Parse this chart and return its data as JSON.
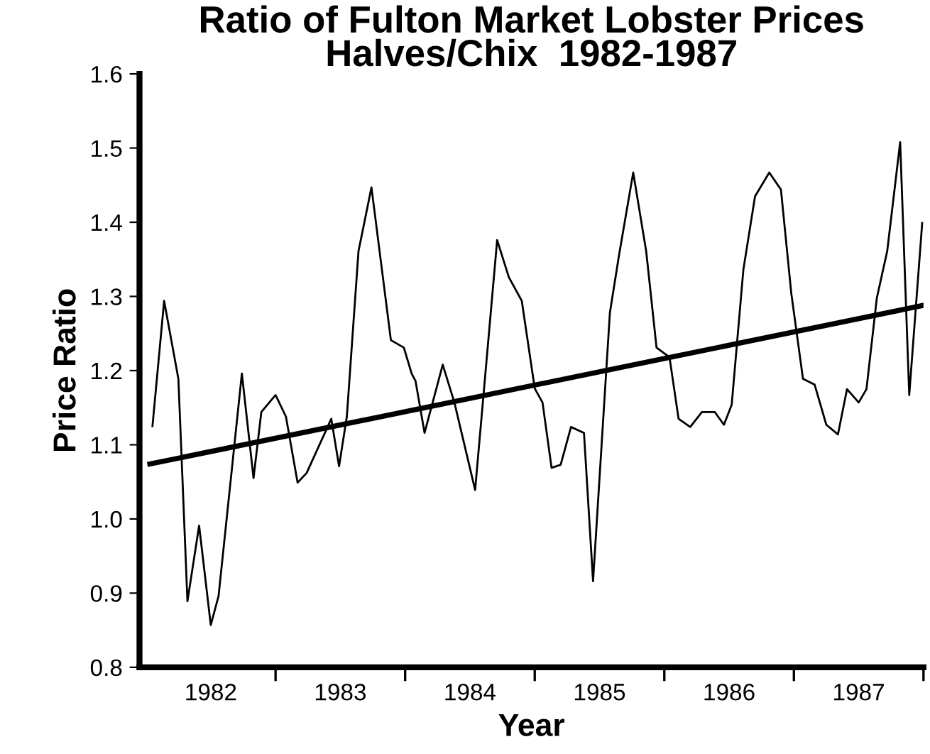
{
  "chart_data": {
    "type": "line",
    "title": "Ratio of Fulton Market Lobster Prices\nHalves/Chix  1982-1987",
    "xlabel": "Year",
    "ylabel": "Price Ratio",
    "xlim": [
      1981.95,
      1988.0
    ],
    "xticks": [
      {
        "value": 1982.5,
        "label": "1982"
      },
      {
        "value": 1983,
        "label": null
      },
      {
        "value": 1983.5,
        "label": "1983"
      },
      {
        "value": 1984,
        "label": null
      },
      {
        "value": 1984.5,
        "label": "1984"
      },
      {
        "value": 1985,
        "label": null
      },
      {
        "value": 1985.5,
        "label": "1985"
      },
      {
        "value": 1986,
        "label": null
      },
      {
        "value": 1986.5,
        "label": "1986"
      },
      {
        "value": 1987,
        "label": null
      },
      {
        "value": 1987.5,
        "label": "1987"
      },
      {
        "value": 1988,
        "label": null
      }
    ],
    "ylim": [
      0.8,
      1.6
    ],
    "yticks": [
      0.8,
      0.9,
      {
        "value": 1.0,
        "label": "1.0"
      },
      1.1,
      1.2,
      1.3,
      1.4,
      1.5,
      1.6
    ],
    "grid": false,
    "legend": false,
    "marker": "none",
    "series": [
      {
        "color": "#000000",
        "line_style": "solid",
        "x": [
          1982.05,
          1982.14,
          1982.25,
          1982.32,
          1982.41,
          1982.5,
          1982.56,
          1982.74,
          1982.83,
          1982.89,
          1983.0,
          1983.08,
          1983.17,
          1983.24,
          1983.43,
          1983.49,
          1983.55,
          1983.64,
          1983.74,
          1983.89,
          1983.99,
          1984.05,
          1984.08,
          1984.15,
          1984.29,
          1984.38,
          1984.54,
          1984.71,
          1984.8,
          1984.9,
          1985.0,
          1985.06,
          1985.13,
          1985.2,
          1985.28,
          1985.38,
          1985.45,
          1985.58,
          1985.65,
          1985.76,
          1985.86,
          1985.94,
          1986.04,
          1986.11,
          1986.2,
          1986.29,
          1986.39,
          1986.46,
          1986.52,
          1986.61,
          1986.7,
          1986.81,
          1986.9,
          1986.98,
          1987.07,
          1987.16,
          1987.25,
          1987.34,
          1987.41,
          1987.5,
          1987.56,
          1987.64,
          1987.72,
          1987.82,
          1987.89,
          1987.99
        ],
        "values": [
          1.125,
          1.294,
          1.189,
          0.889,
          0.991,
          0.857,
          0.896,
          1.196,
          1.055,
          1.144,
          1.167,
          1.138,
          1.049,
          1.062,
          1.135,
          1.071,
          1.138,
          1.361,
          1.447,
          1.241,
          1.231,
          1.196,
          1.186,
          1.116,
          1.208,
          1.157,
          1.039,
          1.376,
          1.326,
          1.294,
          1.176,
          1.157,
          1.069,
          1.073,
          1.124,
          1.116,
          0.916,
          1.278,
          1.355,
          1.467,
          1.361,
          1.231,
          1.218,
          1.135,
          1.124,
          1.144,
          1.144,
          1.127,
          1.154,
          1.336,
          1.435,
          1.467,
          1.444,
          1.304,
          1.189,
          1.181,
          1.127,
          1.114,
          1.175,
          1.157,
          1.175,
          1.298,
          1.361,
          1.508,
          1.167,
          1.399
        ]
      },
      {
        "type": "line",
        "color": "#000000",
        "line_style": "solid",
        "x": [
          1982.03,
          1988.0
        ],
        "values": [
          1.074,
          1.288
        ]
      }
    ]
  }
}
